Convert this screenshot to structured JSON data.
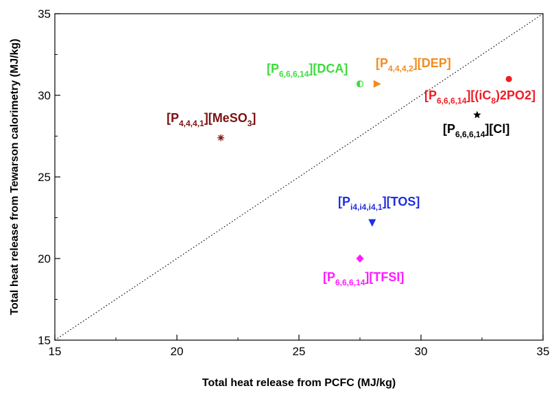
{
  "chart_data": {
    "type": "scatter",
    "title": "",
    "xlabel": "Total heat release from PCFC (MJ/kg)",
    "ylabel": "Total heat release from Tewarson calorimetry (MJ/kg)",
    "xlim": [
      15,
      35
    ],
    "ylim": [
      15,
      35
    ],
    "x_ticks": [
      "15",
      "20",
      "25",
      "30",
      "35"
    ],
    "y_ticks": [
      "15",
      "20",
      "25",
      "30",
      "35"
    ],
    "grid": false,
    "reference_line": {
      "style": "dotted",
      "from": [
        15,
        15
      ],
      "to": [
        35,
        35
      ]
    },
    "series": [
      {
        "name": "[P4,4,4,1][MeSO3]",
        "label_main": "[P",
        "label_sub": "4,4,4,1",
        "label_rest": "][MeSO",
        "label_sub2": "3",
        "label_end": "]",
        "x": 21.8,
        "y": 27.4,
        "color": "#7b1010",
        "marker": "asterisk"
      },
      {
        "name": "[P6,6,6,14][DCA]",
        "label_main": "[P",
        "label_sub": "6,6,6,14",
        "label_rest": "][DCA]",
        "label_sub2": "",
        "label_end": "",
        "x": 27.5,
        "y": 30.7,
        "color": "#3ddc3d",
        "marker": "half-circle"
      },
      {
        "name": "[P4,4,4,2][DEP]",
        "label_main": "[P",
        "label_sub": "4,4,4,2",
        "label_rest": "][DEP]",
        "label_sub2": "",
        "label_end": "",
        "x": 28.2,
        "y": 30.7,
        "color": "#f28c1e",
        "marker": "triangle-right"
      },
      {
        "name": "[P6,6,6,14][(iC8)2PO2]",
        "label_main": "[P",
        "label_sub": "6,6,6,14",
        "label_rest": "][(iC",
        "label_sub2": "8",
        "label_end": ")2PO2]",
        "x": 33.6,
        "y": 31.0,
        "color": "#ee1c24",
        "marker": "circle"
      },
      {
        "name": "[P6,6,6,14][Cl]",
        "label_main": "[P",
        "label_sub": "6,6,6,14",
        "label_rest": "][Cl]",
        "label_sub2": "",
        "label_end": "",
        "x": 32.3,
        "y": 28.8,
        "color": "#000000",
        "marker": "star"
      },
      {
        "name": "[Pi4,i4,i4,1][TOS]",
        "label_main": "[P",
        "label_sub": "i4,i4,i4,1",
        "label_rest": "][TOS]",
        "label_sub2": "",
        "label_end": "",
        "x": 28.0,
        "y": 22.2,
        "color": "#1f2fe0",
        "marker": "triangle-down"
      },
      {
        "name": "[P6,6,6,14][TFSI]",
        "label_main": "[P",
        "label_sub": "6,6,6,14",
        "label_rest": "][TFSI]",
        "label_sub2": "",
        "label_end": "",
        "x": 27.5,
        "y": 20.0,
        "color": "#ff1aff",
        "marker": "diamond"
      }
    ]
  }
}
